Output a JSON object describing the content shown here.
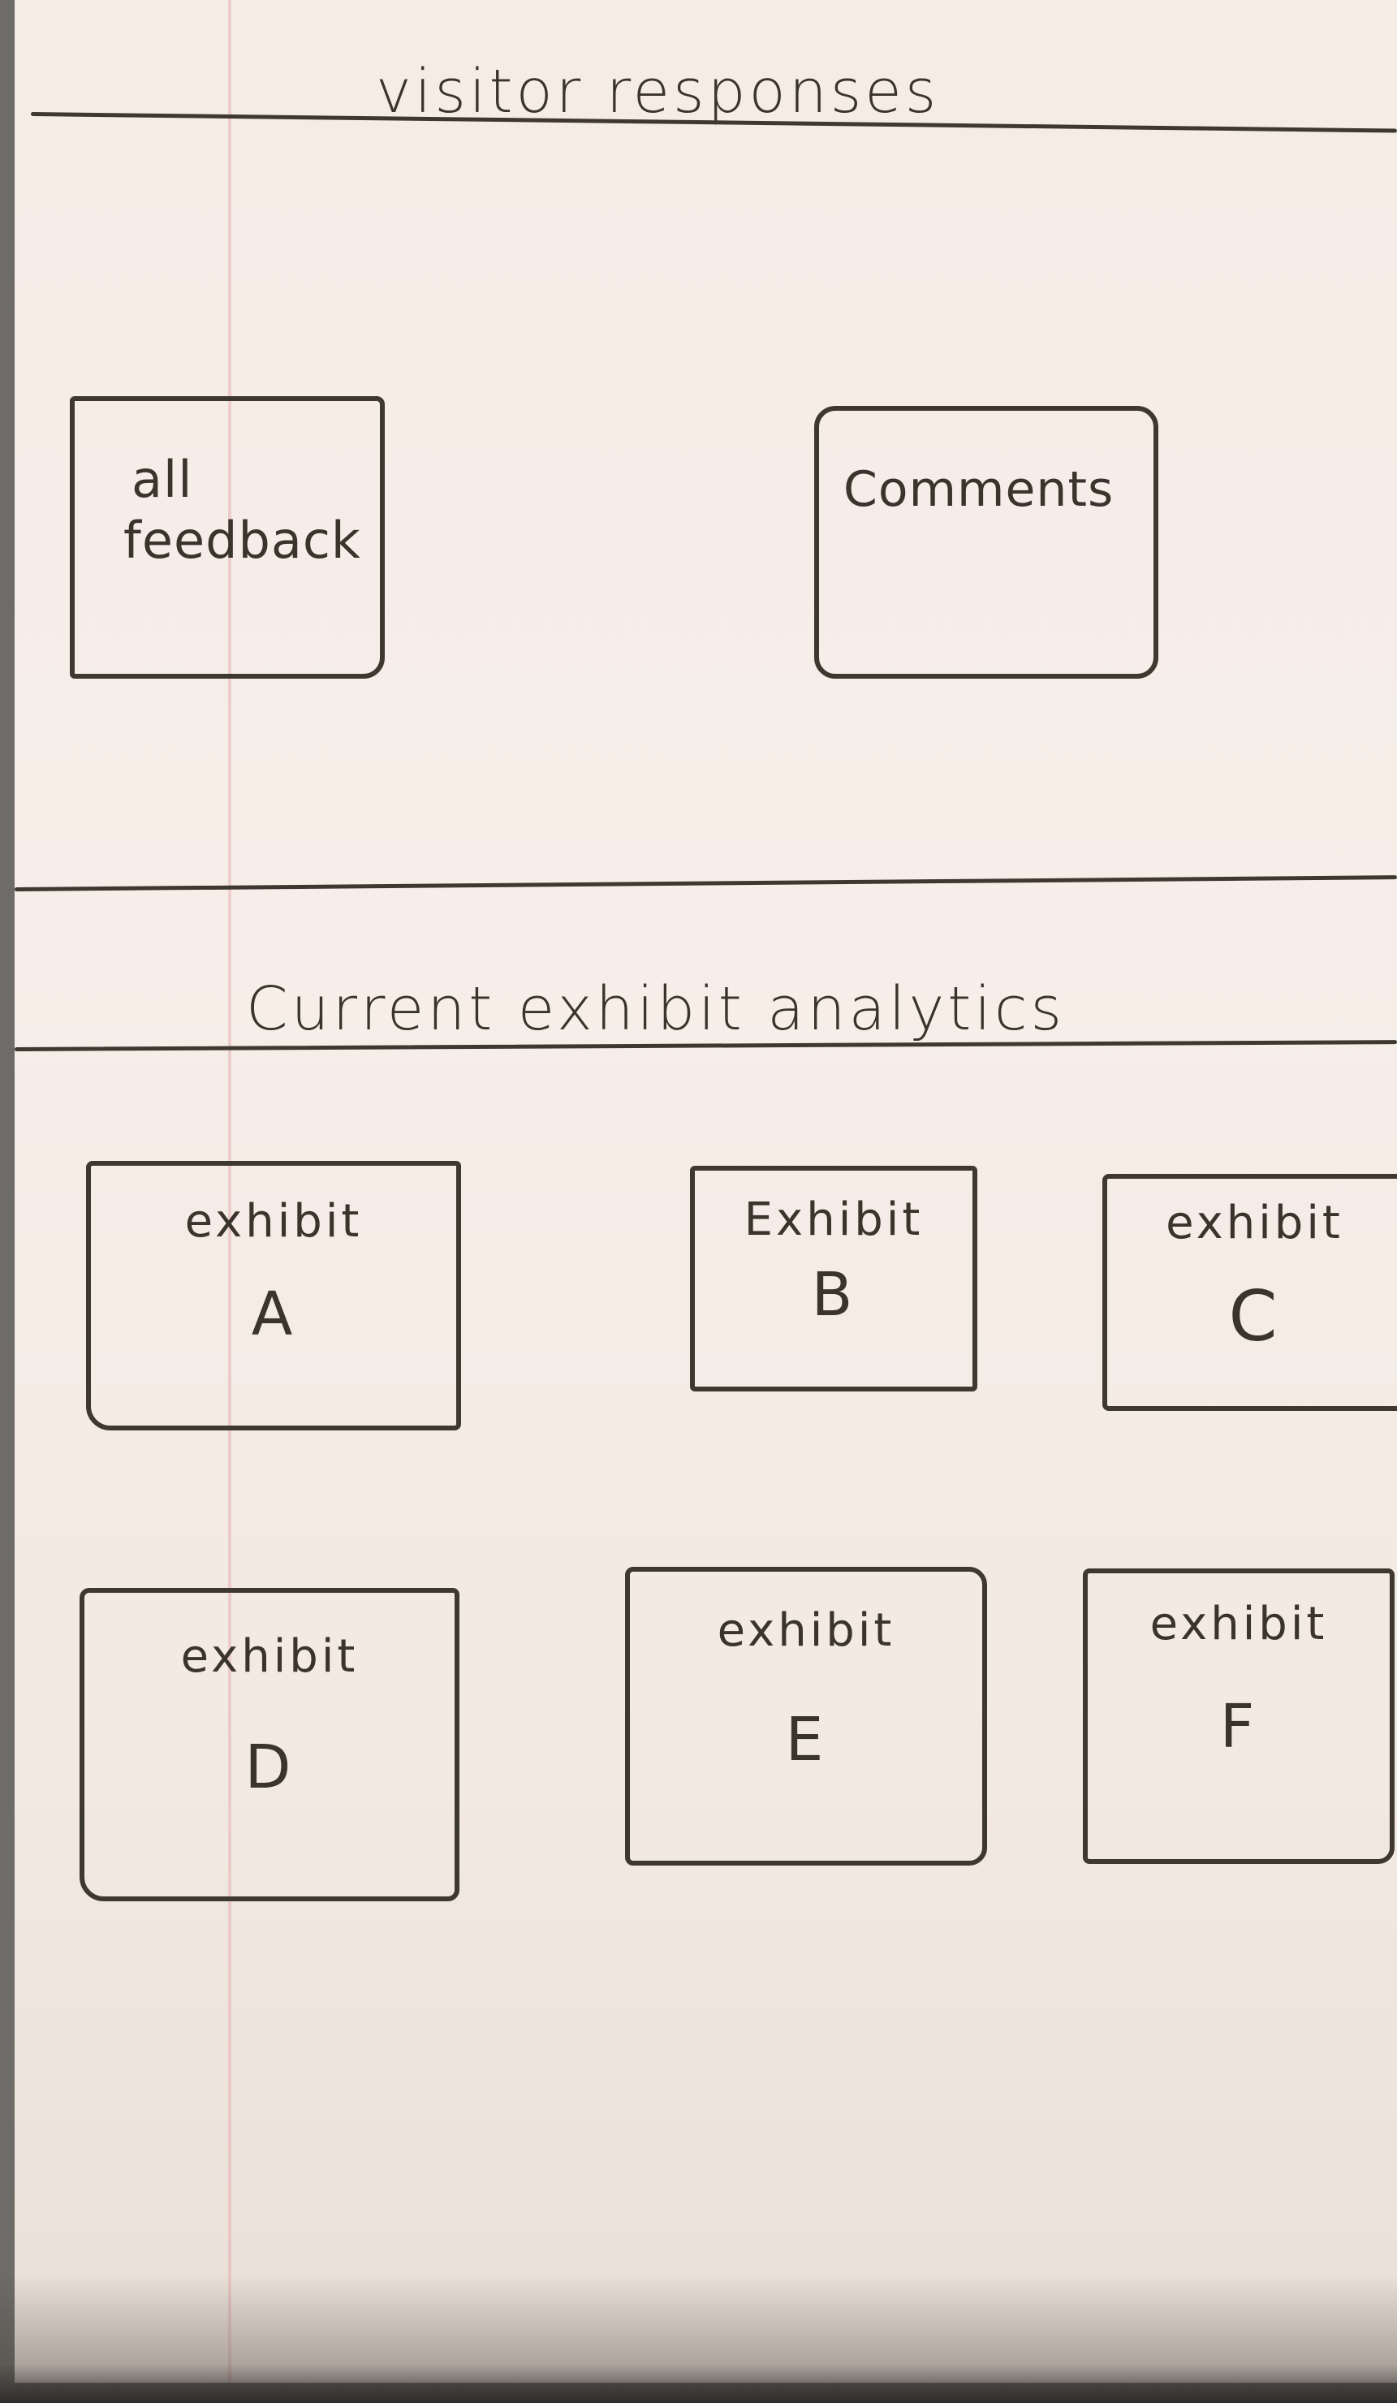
{
  "visitor_responses": {
    "title": "visitor responses",
    "buttons": [
      {
        "line1": "all",
        "line2": "feedback"
      },
      {
        "label": "Comments"
      }
    ]
  },
  "exhibit_analytics": {
    "title": "Current exhibit analytics",
    "exhibits": [
      {
        "word": "exhibit",
        "letter": "A"
      },
      {
        "word": "Exhibit",
        "letter": "B"
      },
      {
        "word": "exhibit",
        "letter": "C"
      },
      {
        "word": "exhibit",
        "letter": "D"
      },
      {
        "word": "exhibit",
        "letter": "E"
      },
      {
        "word": "exhibit",
        "letter": "F"
      }
    ]
  },
  "colors": {
    "paper": "#f5ece6",
    "ink": "#3a352c",
    "margin_line": "#e2a8aa"
  }
}
